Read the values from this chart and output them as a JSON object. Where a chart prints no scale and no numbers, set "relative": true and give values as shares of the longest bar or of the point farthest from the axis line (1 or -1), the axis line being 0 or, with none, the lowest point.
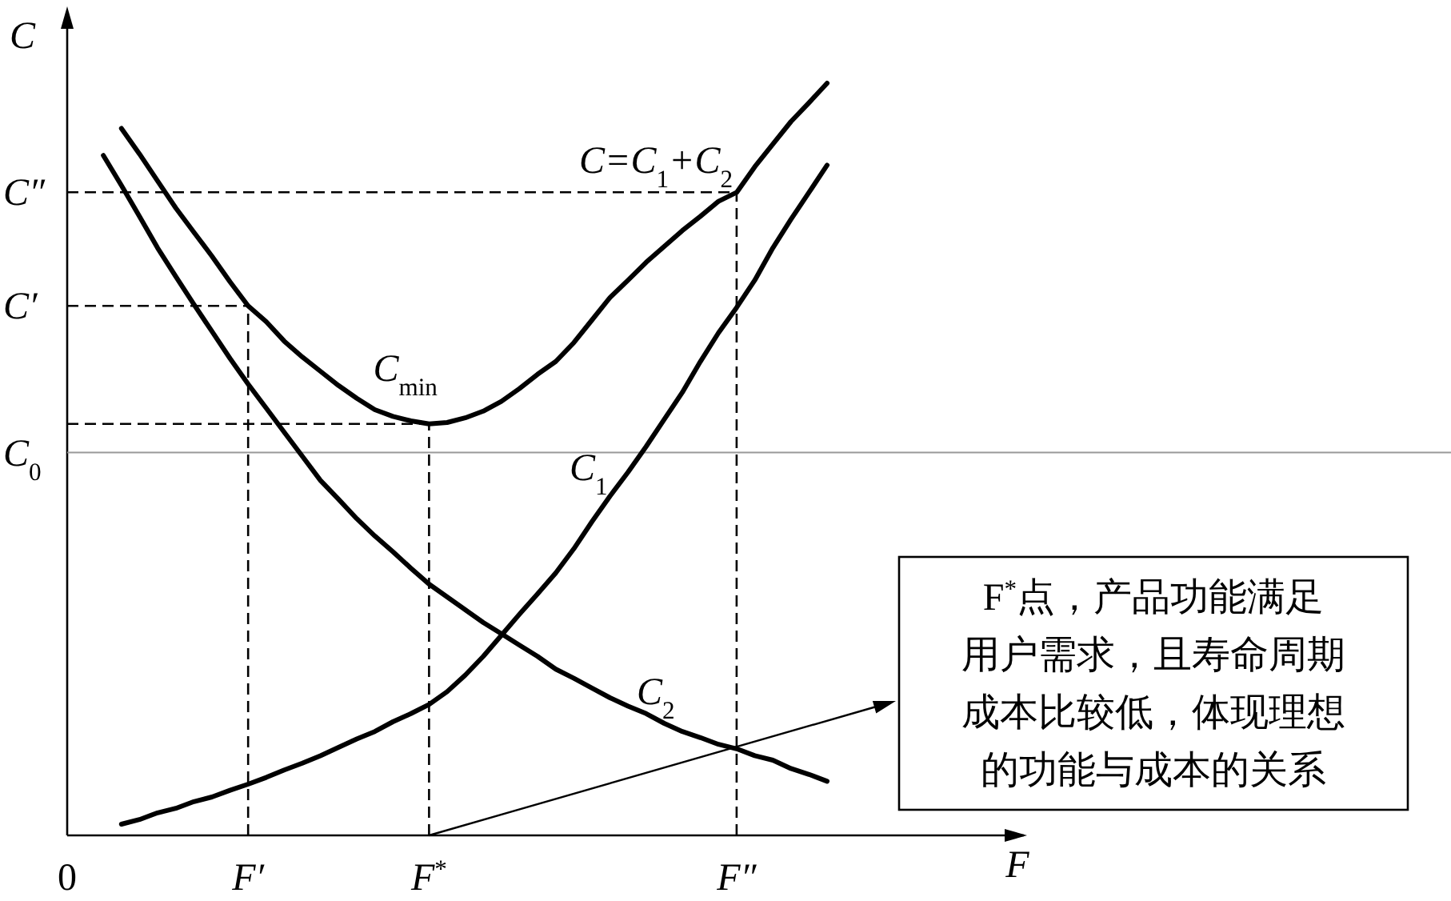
{
  "chart_data": {
    "type": "line",
    "relative": true,
    "xlabel": "F",
    "ylabel": "C",
    "legend": false,
    "grid": false,
    "categories": [
      "0",
      null,
      null,
      null,
      null,
      null,
      null,
      null,
      null,
      null,
      "F′",
      null,
      null,
      null,
      null,
      null,
      null,
      null,
      null,
      null,
      "F$^{*}$",
      null,
      null,
      null,
      null,
      null,
      null,
      null,
      null,
      null,
      null,
      null,
      null,
      null,
      null,
      null,
      null,
      "F″",
      null,
      null,
      null,
      null,
      null
    ],
    "ref_lines": [
      {
        "axis": "y",
        "value": 0.509,
        "label": "C$_{0}$",
        "color": "#999999",
        "line_style": "solid"
      },
      {
        "axis": "y",
        "value": 0.855,
        "label": "C″",
        "color": "#000000",
        "line_style": "dashed"
      },
      {
        "axis": "y",
        "value": 0.704,
        "label": "C′",
        "color": "#000000",
        "line_style": "dashed"
      },
      {
        "axis": "y",
        "value": 0.547,
        "color": "#000000",
        "line_style": "dashed"
      },
      {
        "axis": "x",
        "value": "F″",
        "color": "#000000",
        "line_style": "dashed"
      },
      {
        "axis": "x",
        "value": "F′",
        "color": "#000000",
        "line_style": "dashed"
      },
      {
        "axis": "x",
        "value": "F$^{*}$",
        "color": "#000000",
        "line_style": "dashed"
      }
    ],
    "series": [
      {
        "name": "C=C$_{1}$+C$_{2}$",
        "color": "#000000",
        "values": [
          null,
          null,
          null,
          0.94,
          0.906,
          0.87,
          0.834,
          0.802,
          0.77,
          0.736,
          0.704,
          0.683,
          0.657,
          0.636,
          0.617,
          0.598,
          0.581,
          0.566,
          0.557,
          0.551,
          0.547,
          0.549,
          0.555,
          0.564,
          0.577,
          0.594,
          0.613,
          0.63,
          0.655,
          0.685,
          0.715,
          0.738,
          0.762,
          0.783,
          0.804,
          0.823,
          0.843,
          0.855,
          0.889,
          0.919,
          0.949,
          0.974,
          1.0
        ]
      },
      {
        "name": "C$_{1}$",
        "color": "#000000",
        "values": [
          null,
          null,
          null,
          0.015,
          0.021,
          0.03,
          0.036,
          0.045,
          0.051,
          0.06,
          0.068,
          0.077,
          0.087,
          0.096,
          0.106,
          0.117,
          0.128,
          0.138,
          0.151,
          0.162,
          0.174,
          0.191,
          0.213,
          0.238,
          0.266,
          0.294,
          0.321,
          0.349,
          0.381,
          0.417,
          0.451,
          0.483,
          0.517,
          0.553,
          0.589,
          0.63,
          0.668,
          0.702,
          0.738,
          0.781,
          0.819,
          0.855,
          0.891
        ]
      },
      {
        "name": "C$_{2}$",
        "color": "#000000",
        "values": [
          null,
          null,
          0.904,
          0.864,
          0.823,
          0.781,
          0.743,
          0.706,
          0.67,
          0.634,
          0.6,
          0.568,
          0.536,
          0.504,
          0.472,
          0.447,
          0.421,
          0.398,
          0.377,
          0.355,
          0.334,
          0.317,
          0.3,
          0.283,
          0.268,
          0.253,
          0.238,
          0.221,
          0.209,
          0.196,
          0.183,
          0.172,
          0.162,
          0.149,
          0.138,
          0.13,
          0.121,
          0.115,
          0.106,
          0.1,
          0.089,
          0.081,
          0.072
        ]
      }
    ],
    "annotations": [
      {
        "text": "C$_{min}$",
        "x": "F$^{*}$",
        "y": 0.547
      },
      {
        "text": "F$^{*}$点，产品功能满足用户需求，且寿命周期成本比较低，体现理想的功能与成本的关系"
      }
    ]
  }
}
